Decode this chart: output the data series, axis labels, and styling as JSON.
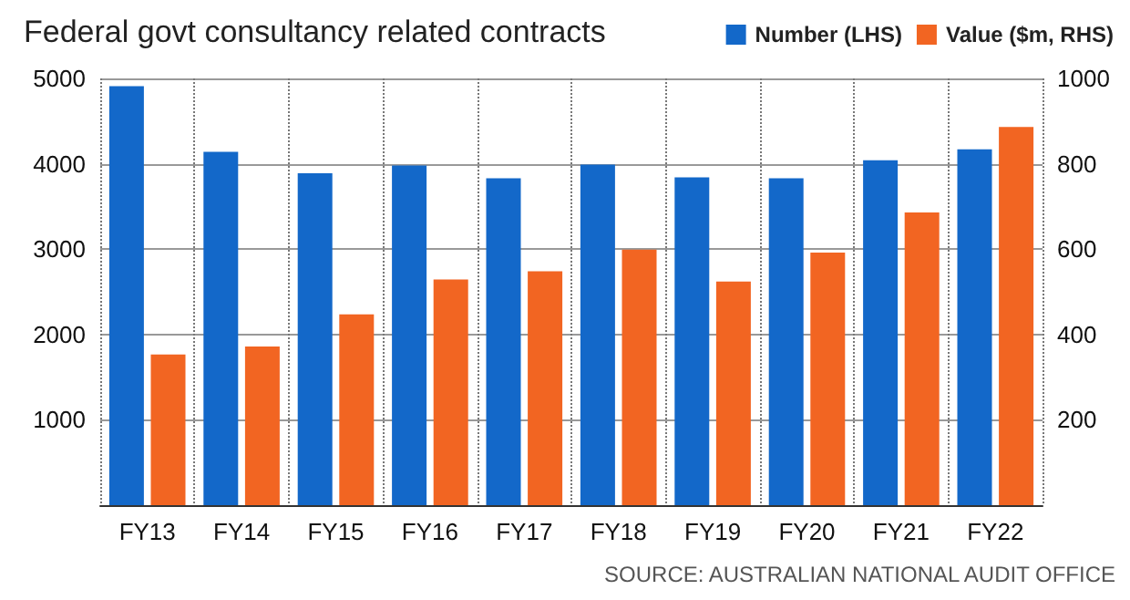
{
  "chart_data": {
    "type": "bar",
    "title": "Federal govt consultancy related contracts",
    "categories": [
      "FY13",
      "FY14",
      "FY15",
      "FY16",
      "FY17",
      "FY18",
      "FY19",
      "FY20",
      "FY21",
      "FY22"
    ],
    "series": [
      {
        "name": "Number (LHS)",
        "color": "#1368c9",
        "values": [
          4910,
          4140,
          3890,
          3980,
          3830,
          3990,
          3840,
          3830,
          4040,
          4170
        ]
      },
      {
        "name": "Value ($m, RHS)",
        "color": "#f26522",
        "axis": "y2",
        "values": [
          353,
          372,
          447,
          529,
          548,
          599,
          524,
          592,
          686,
          886
        ]
      }
    ],
    "ylim": [
      0,
      5000
    ],
    "yticks": [
      1000,
      2000,
      3000,
      4000,
      5000
    ],
    "y2lim": [
      0,
      1000
    ],
    "y2ticks": [
      200,
      400,
      600,
      800,
      1000
    ],
    "grid": true,
    "legend": "top right",
    "annotations": [
      "SOURCE: AUSTRALIAN NATIONAL AUDIT OFFICE"
    ]
  }
}
